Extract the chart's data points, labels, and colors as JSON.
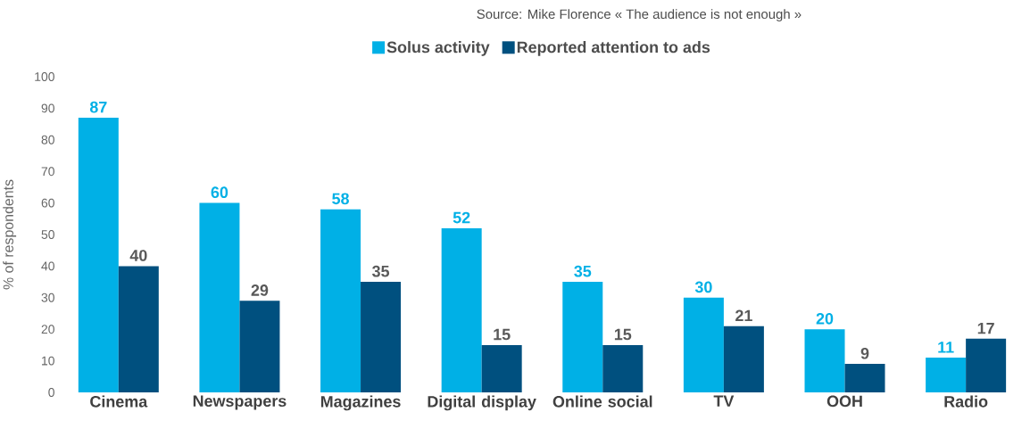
{
  "chart_data": {
    "type": "bar",
    "ylabel": "% of respondents",
    "annotations": [
      "Source: Mike Florence « The audience is not enough »"
    ],
    "categories": [
      "Cinema",
      "Newspapers",
      "Magazines",
      "Digital display",
      "Online social",
      "TV",
      "OOH",
      "Radio"
    ],
    "series": [
      {
        "name": "Solus activity",
        "color": "#00b0e6",
        "values": [
          87,
          60,
          58,
          52,
          35,
          30,
          20,
          11
        ]
      },
      {
        "name": "Reported attention to ads",
        "color": "#00507f",
        "values": [
          40,
          29,
          35,
          15,
          15,
          21,
          9,
          17
        ]
      }
    ],
    "ylim": [
      0,
      100
    ],
    "yticks": [
      0,
      10,
      20,
      30,
      40,
      50,
      60,
      70,
      80,
      90,
      100
    ],
    "data_labels": true,
    "legend": "top",
    "grid": false
  }
}
